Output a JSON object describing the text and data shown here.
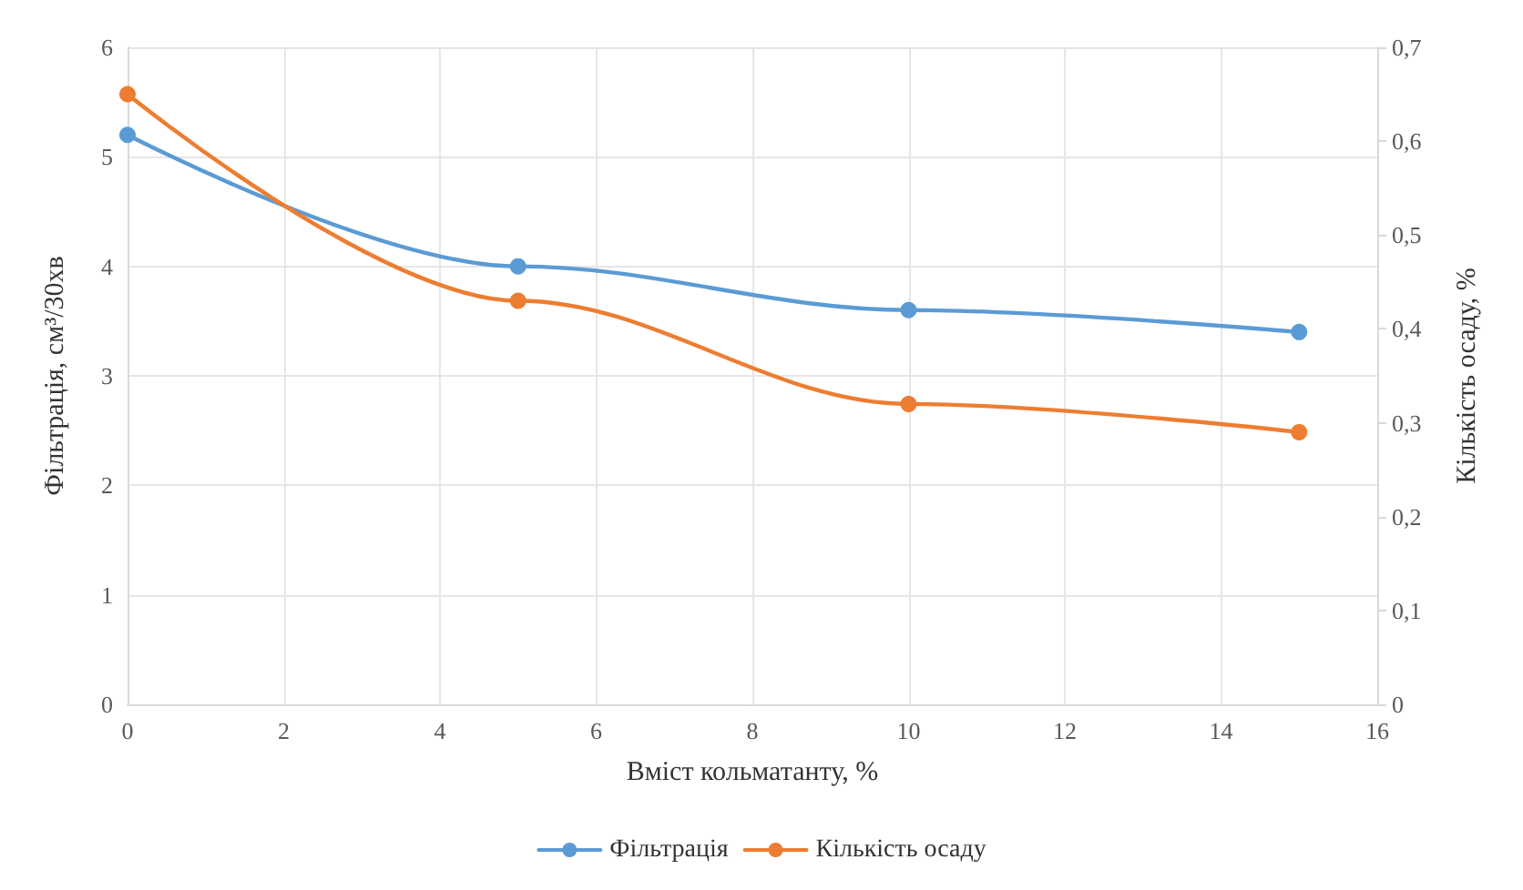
{
  "chart_data": {
    "type": "line",
    "xlabel": "Вміст кольматанту, %",
    "ylabel": "Фільтрація, см³/30хв",
    "y2label": "Кількість осаду, %",
    "x": [
      0,
      5,
      10,
      15
    ],
    "series": [
      {
        "name": "Фільтрація",
        "color": "#5b9bd5",
        "values": [
          5.2,
          4.0,
          3.6,
          3.4
        ]
      },
      {
        "name": "Кількість осаду",
        "color": "#ed7d31",
        "values": [
          0.65,
          0.43,
          0.32,
          0.29
        ],
        "axis": "y2"
      }
    ],
    "xlim": [
      0,
      16
    ],
    "xticks": [
      0,
      2,
      4,
      6,
      8,
      10,
      12,
      14,
      16
    ],
    "ylim": [
      0,
      6
    ],
    "yticks": [
      0,
      1,
      2,
      3,
      4,
      5,
      6
    ],
    "y2lim": [
      0,
      0.7
    ],
    "y2ticks": [
      0,
      {
        "value": 0.1,
        "label": "0,1"
      },
      {
        "value": 0.2,
        "label": "0,2"
      },
      {
        "value": 0.3,
        "label": "0,3"
      },
      {
        "value": 0.4,
        "label": "0,4"
      },
      {
        "value": 0.5,
        "label": "0,5"
      },
      {
        "value": 0.6,
        "label": "0,6"
      },
      {
        "value": 0.7,
        "label": "0,7"
      }
    ],
    "grid": true,
    "legend": "bottom",
    "marker": "circle",
    "line_style": "solid"
  }
}
